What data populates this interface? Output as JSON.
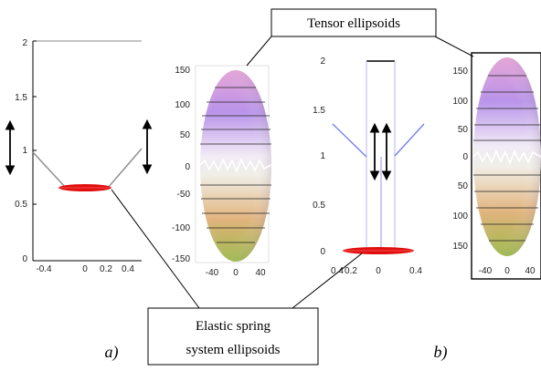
{
  "labels": {
    "tensor_ellipsoids": "Tensor ellipsoids",
    "elastic_line1": "Elastic spring",
    "elastic_line2": "system ellipsoids",
    "panel_a": "a)",
    "panel_b": "b)"
  },
  "plot_a_axes": {
    "y_ticks": [
      "2",
      "1.5",
      "1",
      "0.5",
      "0"
    ],
    "x_ticks": [
      "-0.4",
      "0",
      "0.2",
      "0.4"
    ]
  },
  "ellipsoid_a_axes": {
    "y_ticks": [
      "150",
      "100",
      "50",
      "0",
      "-50",
      "-100",
      "-150"
    ],
    "x_ticks": [
      "-40",
      "0",
      "40"
    ]
  },
  "plot_b_axes": {
    "y_ticks": [
      "2",
      "1.5",
      "1",
      "0.5",
      "0"
    ],
    "x_ticks": [
      "0.4",
      "0.2",
      "0",
      "0.4"
    ]
  },
  "ellipsoid_b_axes": {
    "y_ticks": [
      "150",
      "100",
      "50",
      "0",
      "50",
      "100",
      "150"
    ],
    "x_ticks": [
      "-40",
      "0",
      "40"
    ]
  },
  "colors": {
    "spring_ellipsoid": "#e01010",
    "spring_line_a": "#909090",
    "spring_line_b": "#6f7df0",
    "arrow": "#000000"
  }
}
